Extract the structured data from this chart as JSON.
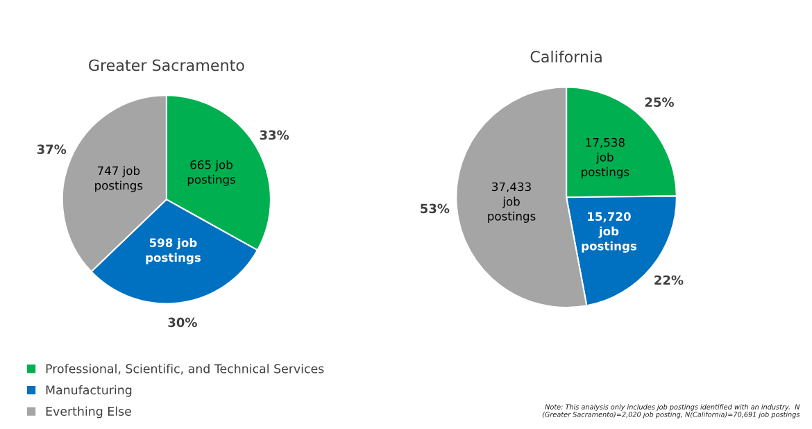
{
  "chart_data": [
    {
      "type": "pie",
      "title": "Greater Sacramento",
      "categories": [
        "Professional, Scientific, and Technical Services",
        "Manufacturing",
        "Everthing Else"
      ],
      "values": [
        665,
        598,
        747
      ],
      "colors": [
        "#00b050",
        "#0070c0",
        "#a5a5a5"
      ],
      "value_labels": [
        "665 job\npostings",
        "598 job\npostings",
        "747 job\npostings"
      ],
      "annotations": [
        "33%",
        "30%",
        "37%"
      ],
      "legend": "bottom left"
    },
    {
      "type": "pie",
      "title": "California",
      "categories": [
        null,
        null,
        null
      ],
      "values": [
        17538,
        15720,
        37433
      ],
      "colors": [
        "#00b050",
        "#0070c0",
        "#a5a5a5"
      ],
      "value_labels": [
        "17,538\njob\npostings",
        "15,720\njob\npostings",
        "37,433\njob\npostings"
      ],
      "annotations": [
        "25%",
        "22%",
        "53%",
        "Note: This analysis only includes job postings identified with an industry.  N\n(Greater Sacramento)=2,020 job posting, N(California)=70,691 job postings"
      ]
    }
  ]
}
